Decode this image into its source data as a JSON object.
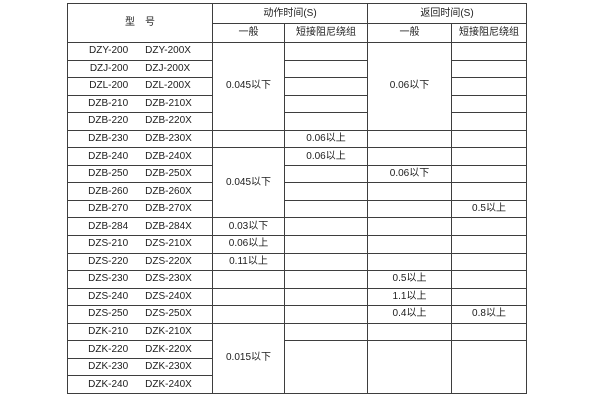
{
  "table": {
    "border_color": "#3e3e3e",
    "text_color": "#1c1c1c",
    "headers": {
      "model": "型　号",
      "action_time": "动作时间(S)",
      "return_time": "返回时间(S)",
      "action_general": "一般",
      "action_damping": "短接阻尼绕组",
      "return_general": "一般",
      "return_damping": "短接阻尼绕组"
    },
    "rows": [
      {
        "model": "DZY-200",
        "model_x": "DZY-200X"
      },
      {
        "model": "DZJ-200",
        "model_x": "DZJ-200X"
      },
      {
        "model": "DZL-200",
        "model_x": "DZL-200X"
      },
      {
        "model": "DZB-210",
        "model_x": "DZB-210X"
      },
      {
        "model": "DZB-220",
        "model_x": "DZB-220X"
      },
      {
        "model": "DZB-230",
        "model_x": "DZB-230X"
      },
      {
        "model": "DZB-240",
        "model_x": "DZB-240X"
      },
      {
        "model": "DZB-250",
        "model_x": "DZB-250X"
      },
      {
        "model": "DZB-260",
        "model_x": "DZB-260X"
      },
      {
        "model": "DZB-270",
        "model_x": "DZB-270X"
      },
      {
        "model": "DZB-284",
        "model_x": "DZB-284X"
      },
      {
        "model": "DZS-210",
        "model_x": "DZS-210X"
      },
      {
        "model": "DZS-220",
        "model_x": "DZS-220X"
      },
      {
        "model": "DZS-230",
        "model_x": "DZS-230X"
      },
      {
        "model": "DZS-240",
        "model_x": "DZS-240X"
      },
      {
        "model": "DZS-250",
        "model_x": "DZS-250X"
      },
      {
        "model": "DZK-210",
        "model_x": "DZK-210X"
      },
      {
        "model": "DZK-220",
        "model_x": "DZK-220X"
      },
      {
        "model": "DZK-230",
        "model_x": "DZK-230X"
      },
      {
        "model": "DZK-240",
        "model_x": "DZK-240X"
      }
    ],
    "cells": {
      "action_general": [
        {
          "row": 0,
          "span": 5,
          "text": "0.045以下"
        },
        {
          "row": 5,
          "span": 1,
          "text": ""
        },
        {
          "row": 6,
          "span": 4,
          "text": "0.045以下"
        },
        {
          "row": 10,
          "span": 1,
          "text": "0.03以下"
        },
        {
          "row": 11,
          "span": 1,
          "text": "0.06以上"
        },
        {
          "row": 12,
          "span": 1,
          "text": "0.11以上"
        },
        {
          "row": 13,
          "span": 1,
          "text": ""
        },
        {
          "row": 14,
          "span": 1,
          "text": ""
        },
        {
          "row": 15,
          "span": 1,
          "text": ""
        },
        {
          "row": 16,
          "span": 4,
          "text": "0.015以下"
        }
      ],
      "action_damping": [
        {
          "row": 0,
          "span": 1,
          "text": ""
        },
        {
          "row": 1,
          "span": 1,
          "text": ""
        },
        {
          "row": 2,
          "span": 1,
          "text": ""
        },
        {
          "row": 3,
          "span": 1,
          "text": ""
        },
        {
          "row": 4,
          "span": 1,
          "text": ""
        },
        {
          "row": 5,
          "span": 1,
          "text": "0.06以上"
        },
        {
          "row": 6,
          "span": 1,
          "text": "0.06以上"
        },
        {
          "row": 7,
          "span": 1,
          "text": ""
        },
        {
          "row": 8,
          "span": 1,
          "text": ""
        },
        {
          "row": 9,
          "span": 1,
          "text": ""
        },
        {
          "row": 10,
          "span": 1,
          "text": ""
        },
        {
          "row": 11,
          "span": 1,
          "text": ""
        },
        {
          "row": 12,
          "span": 1,
          "text": ""
        },
        {
          "row": 13,
          "span": 1,
          "text": ""
        },
        {
          "row": 14,
          "span": 1,
          "text": ""
        },
        {
          "row": 15,
          "span": 1,
          "text": ""
        },
        {
          "row": 16,
          "span": 1,
          "text": ""
        },
        {
          "row": 17,
          "span": 3,
          "text": ""
        }
      ],
      "return_general": [
        {
          "row": 0,
          "span": 5,
          "text": "0.06以下"
        },
        {
          "row": 5,
          "span": 1,
          "text": ""
        },
        {
          "row": 6,
          "span": 1,
          "text": ""
        },
        {
          "row": 7,
          "span": 1,
          "text": "0.06以下"
        },
        {
          "row": 8,
          "span": 1,
          "text": ""
        },
        {
          "row": 9,
          "span": 1,
          "text": ""
        },
        {
          "row": 10,
          "span": 1,
          "text": ""
        },
        {
          "row": 11,
          "span": 1,
          "text": ""
        },
        {
          "row": 12,
          "span": 1,
          "text": ""
        },
        {
          "row": 13,
          "span": 1,
          "text": "0.5以上"
        },
        {
          "row": 14,
          "span": 1,
          "text": "1.1以上"
        },
        {
          "row": 15,
          "span": 1,
          "text": "0.4以上"
        },
        {
          "row": 16,
          "span": 1,
          "text": ""
        },
        {
          "row": 17,
          "span": 3,
          "text": ""
        }
      ],
      "return_damping": [
        {
          "row": 0,
          "span": 1,
          "text": ""
        },
        {
          "row": 1,
          "span": 1,
          "text": ""
        },
        {
          "row": 2,
          "span": 1,
          "text": ""
        },
        {
          "row": 3,
          "span": 1,
          "text": ""
        },
        {
          "row": 4,
          "span": 1,
          "text": ""
        },
        {
          "row": 5,
          "span": 1,
          "text": ""
        },
        {
          "row": 6,
          "span": 1,
          "text": ""
        },
        {
          "row": 7,
          "span": 1,
          "text": ""
        },
        {
          "row": 8,
          "span": 1,
          "text": ""
        },
        {
          "row": 9,
          "span": 1,
          "text": "0.5以上"
        },
        {
          "row": 10,
          "span": 1,
          "text": ""
        },
        {
          "row": 11,
          "span": 1,
          "text": ""
        },
        {
          "row": 12,
          "span": 1,
          "text": ""
        },
        {
          "row": 13,
          "span": 1,
          "text": ""
        },
        {
          "row": 14,
          "span": 1,
          "text": ""
        },
        {
          "row": 15,
          "span": 1,
          "text": "0.8以上"
        },
        {
          "row": 16,
          "span": 1,
          "text": ""
        },
        {
          "row": 17,
          "span": 3,
          "text": ""
        }
      ]
    }
  }
}
